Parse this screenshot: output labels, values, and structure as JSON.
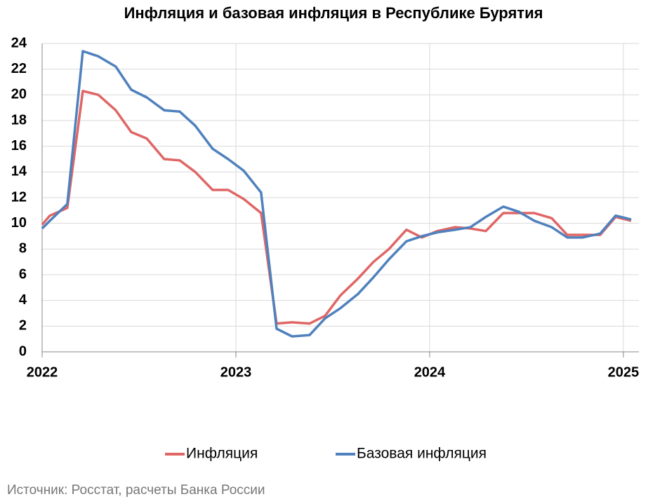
{
  "chart_data": {
    "type": "line",
    "title": "Инфляция и базовая инфляция в Республике Бурятия",
    "source": "Источник: Росстат, расчеты Банка России",
    "x": [
      2022.0,
      2022.04,
      2022.13,
      2022.21,
      2022.29,
      2022.38,
      2022.46,
      2022.54,
      2022.63,
      2022.71,
      2022.79,
      2022.88,
      2022.96,
      2023.04,
      2023.13,
      2023.21,
      2023.29,
      2023.38,
      2023.46,
      2023.54,
      2023.63,
      2023.71,
      2023.79,
      2023.88,
      2023.96,
      2024.04,
      2024.13,
      2024.21,
      2024.29,
      2024.38,
      2024.46,
      2024.54,
      2024.63,
      2024.71,
      2024.79,
      2024.88,
      2024.96,
      2025.04
    ],
    "series": [
      {
        "name": "Инфляция",
        "color": "#e06666",
        "values": [
          9.9,
          10.6,
          11.2,
          20.3,
          20.0,
          18.8,
          17.1,
          16.6,
          15.0,
          14.9,
          14.0,
          12.6,
          12.6,
          11.9,
          10.8,
          2.2,
          2.3,
          2.2,
          2.8,
          4.4,
          5.7,
          7.0,
          8.0,
          9.5,
          8.9,
          9.4,
          9.7,
          9.6,
          9.4,
          10.8,
          10.8,
          10.8,
          10.4,
          9.1,
          9.1,
          9.1,
          10.5,
          10.2
        ]
      },
      {
        "name": "Базовая инфляция",
        "color": "#4f81bd",
        "values": [
          9.6,
          10.2,
          11.5,
          23.4,
          23.0,
          22.2,
          20.4,
          19.8,
          18.8,
          18.7,
          17.6,
          15.8,
          15.0,
          14.1,
          12.4,
          1.8,
          1.2,
          1.3,
          2.6,
          3.4,
          4.5,
          5.8,
          7.2,
          8.6,
          9.0,
          9.3,
          9.5,
          9.7,
          10.5,
          11.3,
          10.9,
          10.2,
          9.7,
          8.9,
          8.9,
          9.2,
          10.6,
          10.3
        ]
      }
    ],
    "xlim": [
      2022,
      2025.08
    ],
    "xticks": [
      2022,
      2023,
      2024,
      2025
    ],
    "ylim": [
      0,
      24
    ],
    "yticks": [
      0,
      2,
      4,
      6,
      8,
      10,
      12,
      14,
      16,
      18,
      20,
      22,
      24
    ],
    "grid": true,
    "legend": "bottom"
  }
}
